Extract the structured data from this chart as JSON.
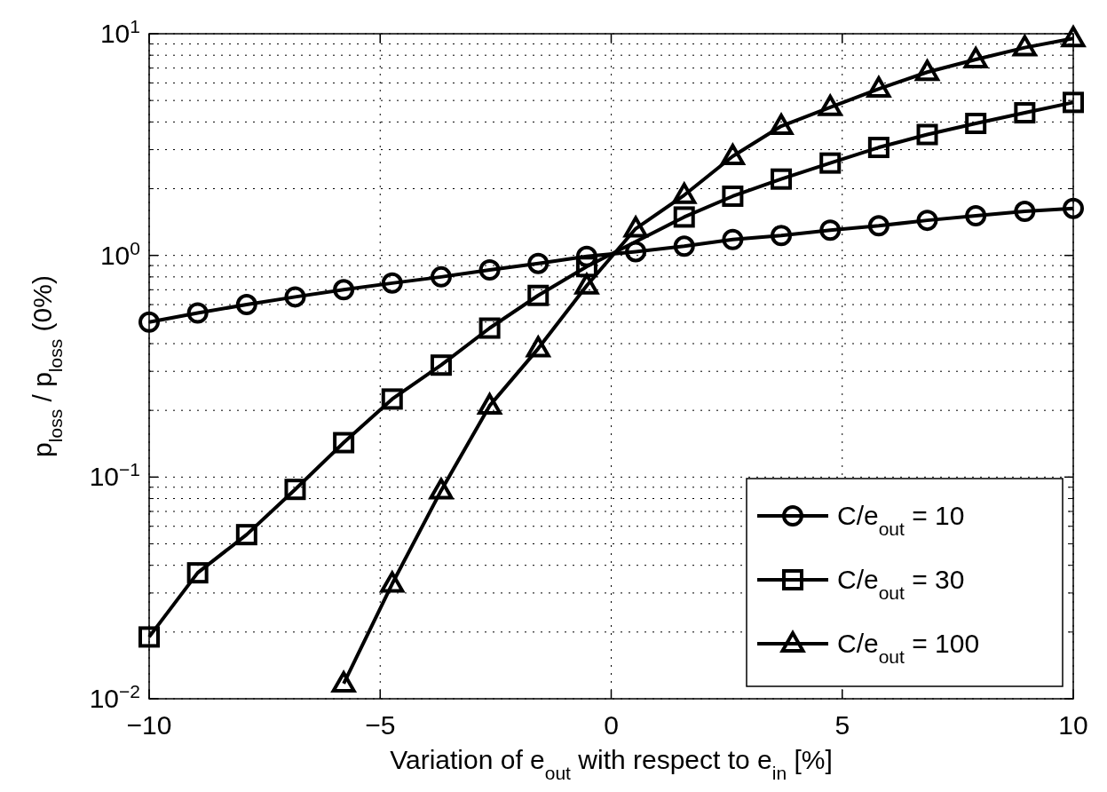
{
  "chart_data": {
    "type": "line",
    "xlabel": "Variation of e$_{out}$ with respect to e$_{in}$ [%]",
    "ylabel": "p$_{loss}$ / p$_{loss}$ (0%)",
    "x": [
      -10,
      -8.95,
      -7.89,
      -6.84,
      -5.79,
      -4.74,
      -3.68,
      -2.63,
      -1.58,
      -0.53,
      0.53,
      1.58,
      2.63,
      3.68,
      4.74,
      5.79,
      6.84,
      7.89,
      8.95,
      10
    ],
    "series": [
      {
        "name": "C/e$_{out}$ = 10",
        "color": "#000000",
        "marker": "circle",
        "values": [
          0.5,
          0.55,
          0.6,
          0.65,
          0.7,
          0.75,
          0.8,
          0.86,
          0.92,
          0.99,
          1.04,
          1.1,
          1.18,
          1.23,
          1.3,
          1.36,
          1.44,
          1.51,
          1.58,
          1.63
        ]
      },
      {
        "name": "C/e$_{out}$ = 30",
        "color": "#000000",
        "marker": "square",
        "values": [
          0.019,
          0.037,
          0.055,
          0.088,
          0.143,
          0.225,
          0.32,
          0.47,
          0.66,
          0.89,
          null,
          1.49,
          1.85,
          2.21,
          2.61,
          3.07,
          3.51,
          3.94,
          4.4,
          4.9
        ]
      },
      {
        "name": "C/e$_{out}$ = 100",
        "color": "#000000",
        "marker": "triangle",
        "values": [
          null,
          null,
          null,
          null,
          0.0117,
          0.033,
          0.087,
          0.21,
          0.38,
          0.73,
          1.32,
          1.87,
          2.8,
          3.83,
          4.66,
          5.64,
          6.71,
          7.65,
          8.66,
          9.52
        ]
      }
    ],
    "xlim": [
      -10,
      10
    ],
    "xticks": [
      {
        "value": -10,
        "label": "−10"
      },
      {
        "value": -5,
        "label": "−5"
      },
      0,
      5,
      10
    ],
    "ylim": [
      0.01,
      10
    ],
    "yticks": [
      {
        "value": 0.01,
        "label": "10$^{−2}$"
      },
      {
        "value": 0.1,
        "label": "10$^{−1}$"
      },
      {
        "value": 1,
        "label": "10$^{0}$"
      },
      {
        "value": 10,
        "label": "10$^{1}$"
      }
    ],
    "log": "y",
    "grid": true,
    "legend": "bottom right",
    "line_style": "solid"
  }
}
